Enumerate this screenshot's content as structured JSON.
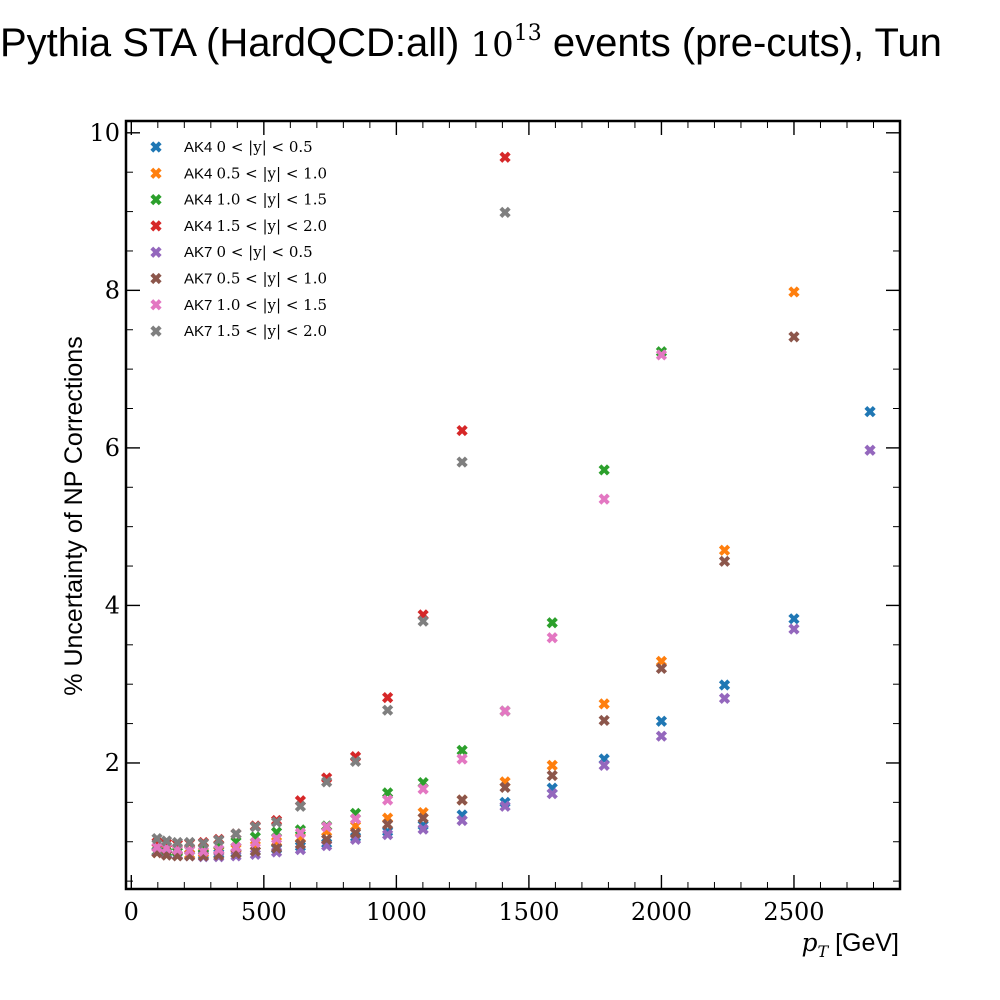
{
  "chart_data": {
    "type": "scatter",
    "title": {
      "prefix": "Pythia STA (HardQCD:all) ",
      "math_base": "10",
      "math_exp": "13",
      "suffix": " events (pre-cuts), Tun"
    },
    "xlabel": {
      "math": "p",
      "sub": "T",
      "rest": " [GeV]"
    },
    "ylabel": "% Uncertainty of NP Corrections",
    "xlim": [
      -20,
      2900
    ],
    "ylim": [
      0.4,
      10.15
    ],
    "xticks": [
      0,
      500,
      1000,
      1500,
      2000,
      2500
    ],
    "yticks": [
      2,
      4,
      6,
      8,
      10
    ],
    "grid": false,
    "legend_position": "top-left",
    "marker": "x",
    "x": [
      97,
      114,
      133,
      153,
      174,
      196,
      220,
      245,
      272,
      300,
      330,
      362,
      395,
      430,
      468,
      507,
      548,
      592,
      638,
      686,
      737,
      790,
      846,
      905,
      967,
      1032,
      1101,
      1172,
      1248,
      1327,
      1410,
      1497,
      1588,
      1784,
      2000,
      2238,
      2500,
      2787
    ],
    "series": [
      {
        "name": "AK4",
        "range": "0 < |y| < 0.5",
        "color": "#1f77b4",
        "x": [
          97,
          133,
          174,
          220,
          272,
          330,
          395,
          468,
          548,
          638,
          737,
          846,
          967,
          1101,
          1248,
          1410,
          1588,
          1784,
          2000,
          2238,
          2500,
          2787
        ],
        "y": [
          0.87,
          0.85,
          0.83,
          0.84,
          0.84,
          0.85,
          0.86,
          0.88,
          0.91,
          0.94,
          0.98,
          1.06,
          1.13,
          1.21,
          1.34,
          1.5,
          1.68,
          2.05,
          2.53,
          2.99,
          3.83,
          6.46
        ]
      },
      {
        "name": "AK4",
        "range": "0.5 < |y| < 1.0",
        "color": "#ff7f0e",
        "x": [
          97,
          133,
          174,
          220,
          272,
          330,
          395,
          468,
          548,
          638,
          737,
          846,
          967,
          1101,
          1248,
          1410,
          1588,
          1784,
          2000,
          2238,
          2500
        ],
        "y": [
          0.86,
          0.84,
          0.83,
          0.84,
          0.86,
          0.88,
          0.91,
          0.95,
          1.0,
          1.05,
          1.13,
          1.2,
          1.3,
          1.37,
          1.53,
          1.76,
          1.97,
          2.75,
          3.29,
          4.7,
          7.98
        ]
      },
      {
        "name": "AK4",
        "range": "1.0 < |y| < 1.5",
        "color": "#2ca02c",
        "x": [
          97,
          133,
          174,
          220,
          272,
          330,
          395,
          468,
          548,
          638,
          737,
          846,
          967,
          1101,
          1248,
          1410,
          1588,
          1784,
          2000
        ],
        "y": [
          0.88,
          0.87,
          0.87,
          0.89,
          0.92,
          0.96,
          1.0,
          1.06,
          1.12,
          1.15,
          1.2,
          1.36,
          1.62,
          1.75,
          2.16,
          2.66,
          3.78,
          5.72,
          7.22
        ]
      },
      {
        "name": "AK4",
        "range": "1.5 < |y| < 2.0",
        "color": "#d62728",
        "x": [
          97,
          133,
          174,
          220,
          272,
          330,
          395,
          468,
          548,
          638,
          737,
          846,
          967,
          1101,
          1248,
          1410
        ],
        "y": [
          0.99,
          0.98,
          0.97,
          0.98,
          0.99,
          1.03,
          1.1,
          1.2,
          1.27,
          1.52,
          1.81,
          2.08,
          2.83,
          3.88,
          6.22,
          9.69
        ]
      },
      {
        "name": "AK7",
        "range": "0 < |y| < 0.5",
        "color": "#9467bd",
        "x": [
          97,
          133,
          174,
          220,
          272,
          330,
          395,
          468,
          548,
          638,
          737,
          846,
          967,
          1101,
          1248,
          1410,
          1588,
          1784,
          2000,
          2238,
          2500,
          2787
        ],
        "y": [
          0.87,
          0.84,
          0.83,
          0.82,
          0.81,
          0.81,
          0.82,
          0.84,
          0.87,
          0.9,
          0.95,
          1.03,
          1.09,
          1.16,
          1.27,
          1.45,
          1.61,
          1.97,
          2.34,
          2.82,
          3.7,
          5.97
        ]
      },
      {
        "name": "AK7",
        "range": "0.5 < |y| < 1.0",
        "color": "#8c564b",
        "x": [
          97,
          133,
          174,
          220,
          272,
          330,
          395,
          468,
          548,
          638,
          737,
          846,
          967,
          1101,
          1248,
          1410,
          1588,
          1784,
          2000,
          2238,
          2500
        ],
        "y": [
          0.86,
          0.83,
          0.82,
          0.82,
          0.82,
          0.83,
          0.85,
          0.88,
          0.92,
          0.97,
          1.03,
          1.11,
          1.22,
          1.3,
          1.53,
          1.69,
          1.84,
          2.54,
          3.2,
          4.56,
          7.41
        ]
      },
      {
        "name": "AK7",
        "range": "1.0 < |y| < 1.5",
        "color": "#e377c2",
        "x": [
          97,
          133,
          174,
          220,
          272,
          330,
          395,
          468,
          548,
          638,
          737,
          846,
          967,
          1101,
          1248,
          1410,
          1588,
          1784,
          2000
        ],
        "y": [
          0.93,
          0.92,
          0.9,
          0.89,
          0.88,
          0.9,
          0.93,
          0.99,
          1.04,
          1.11,
          1.19,
          1.29,
          1.53,
          1.67,
          2.05,
          2.66,
          3.59,
          5.35,
          7.18
        ]
      },
      {
        "name": "AK7",
        "range": "1.5 < |y| < 2.0",
        "color": "#7f7f7f",
        "x": [
          97,
          133,
          174,
          220,
          272,
          330,
          395,
          468,
          548,
          638,
          737,
          846,
          967,
          1101,
          1248,
          1410
        ],
        "y": [
          1.04,
          1.01,
          0.99,
          0.99,
          0.98,
          1.02,
          1.1,
          1.19,
          1.25,
          1.45,
          1.76,
          2.02,
          2.67,
          3.8,
          5.82,
          8.99
        ]
      }
    ]
  }
}
